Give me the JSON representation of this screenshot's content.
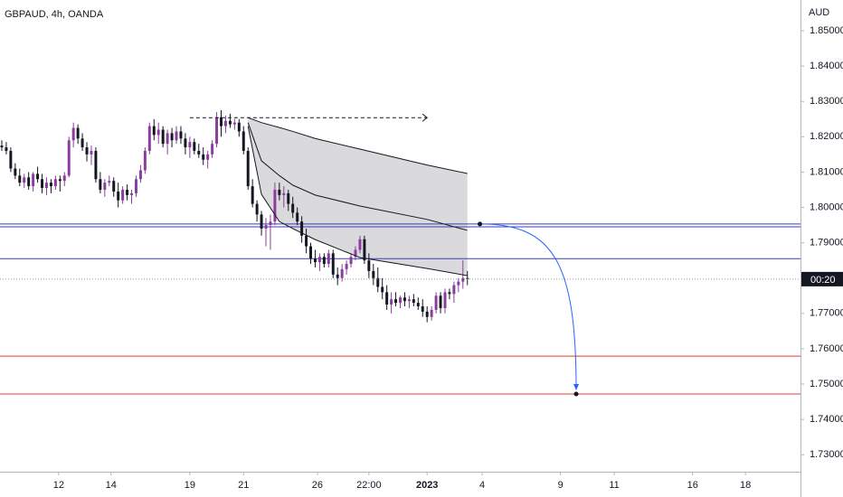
{
  "chart_data": {
    "type": "candlestick",
    "title": "GBPAUD, 4h, OANDA",
    "unit": "AUD",
    "bull_color": "#8a3d9e",
    "bear_color": "#131722",
    "xlim": [
      -0.4,
      178.4
    ],
    "xticks": [
      {
        "value": 12.7,
        "label": "12"
      },
      {
        "value": 24.4,
        "label": "14"
      },
      {
        "value": 42,
        "label": "19"
      },
      {
        "value": 54,
        "label": "21"
      },
      {
        "value": 70.5,
        "label": "26"
      },
      {
        "value": 82,
        "label": "22:00"
      },
      {
        "value": 95,
        "label": "2023",
        "bold": true
      },
      {
        "value": 107.3,
        "label": "4"
      },
      {
        "value": 124.8,
        "label": "9"
      },
      {
        "value": 136.8,
        "label": "11"
      },
      {
        "value": 154.3,
        "label": "16"
      },
      {
        "value": 166.1,
        "label": "18"
      }
    ],
    "ylim": [
      1.7252,
      1.8587
    ],
    "yticks": [
      {
        "value": 1.73,
        "label": "1.73000"
      },
      {
        "value": 1.74,
        "label": "1.74000"
      },
      {
        "value": 1.75,
        "label": "1.75000"
      },
      {
        "value": 1.76,
        "label": "1.76000"
      },
      {
        "value": 1.77,
        "label": "1.77000"
      },
      {
        "value": 1.78,
        "label": "1.78000"
      },
      {
        "value": 1.79,
        "label": "1.79000"
      },
      {
        "value": 1.8,
        "label": "1.80000"
      },
      {
        "value": 1.81,
        "label": "1.81000"
      },
      {
        "value": 1.82,
        "label": "1.82000"
      },
      {
        "value": 1.83,
        "label": "1.83000"
      },
      {
        "value": 1.84,
        "label": "1.84000"
      },
      {
        "value": 1.85,
        "label": "1.85000"
      }
    ],
    "candles": [
      [
        1.8175,
        1.819,
        1.816,
        1.817
      ],
      [
        1.817,
        1.8185,
        1.815,
        1.816
      ],
      [
        1.816,
        1.817,
        1.81,
        1.811
      ],
      [
        1.811,
        1.8125,
        1.808,
        1.809
      ],
      [
        1.809,
        1.811,
        1.806,
        1.807
      ],
      [
        1.807,
        1.8095,
        1.8055,
        1.8085
      ],
      [
        1.8085,
        1.81,
        1.805,
        1.806
      ],
      [
        1.806,
        1.81,
        1.8045,
        1.8095
      ],
      [
        1.8095,
        1.8115,
        1.807,
        1.808
      ],
      [
        1.808,
        1.8095,
        1.804,
        1.8055
      ],
      [
        1.8055,
        1.8085,
        1.8035,
        1.807
      ],
      [
        1.807,
        1.808,
        1.804,
        1.806
      ],
      [
        1.806,
        1.809,
        1.805,
        1.808
      ],
      [
        1.808,
        1.809,
        1.8045,
        1.8075
      ],
      [
        1.8075,
        1.81,
        1.806,
        1.809
      ],
      [
        1.809,
        1.82,
        1.8085,
        1.819
      ],
      [
        1.819,
        1.824,
        1.817,
        1.8225
      ],
      [
        1.8225,
        1.8235,
        1.818,
        1.8195
      ],
      [
        1.8195,
        1.821,
        1.816,
        1.817
      ],
      [
        1.817,
        1.8185,
        1.813,
        1.815
      ],
      [
        1.815,
        1.8175,
        1.812,
        1.816
      ],
      [
        1.816,
        1.817,
        1.807,
        1.808
      ],
      [
        1.808,
        1.81,
        1.804,
        1.805
      ],
      [
        1.805,
        1.808,
        1.803,
        1.807
      ],
      [
        1.807,
        1.809,
        1.806,
        1.8075
      ],
      [
        1.8075,
        1.8085,
        1.803,
        1.8045
      ],
      [
        1.8045,
        1.807,
        1.8,
        1.802
      ],
      [
        1.802,
        1.806,
        1.801,
        1.805
      ],
      [
        1.805,
        1.8065,
        1.802,
        1.8035
      ],
      [
        1.8035,
        1.805,
        1.801,
        1.804
      ],
      [
        1.804,
        1.809,
        1.803,
        1.808
      ],
      [
        1.808,
        1.812,
        1.807,
        1.8105
      ],
      [
        1.8105,
        1.817,
        1.8095,
        1.816
      ],
      [
        1.816,
        1.824,
        1.815,
        1.823
      ],
      [
        1.823,
        1.825,
        1.819,
        1.8205
      ],
      [
        1.8205,
        1.824,
        1.818,
        1.822
      ],
      [
        1.822,
        1.823,
        1.817,
        1.818
      ],
      [
        1.818,
        1.822,
        1.815,
        1.821
      ],
      [
        1.821,
        1.8225,
        1.817,
        1.819
      ],
      [
        1.819,
        1.823,
        1.818,
        1.8215
      ],
      [
        1.8215,
        1.823,
        1.818,
        1.8195
      ],
      [
        1.8195,
        1.821,
        1.815,
        1.817
      ],
      [
        1.817,
        1.82,
        1.814,
        1.8185
      ],
      [
        1.8185,
        1.8195,
        1.815,
        1.816
      ],
      [
        1.816,
        1.818,
        1.814,
        1.815
      ],
      [
        1.815,
        1.817,
        1.812,
        1.8135
      ],
      [
        1.8135,
        1.816,
        1.811,
        1.815
      ],
      [
        1.815,
        1.819,
        1.814,
        1.818
      ],
      [
        1.818,
        1.827,
        1.817,
        1.8255
      ],
      [
        1.8255,
        1.8275,
        1.82,
        1.823
      ],
      [
        1.823,
        1.826,
        1.821,
        1.8245
      ],
      [
        1.8245,
        1.8265,
        1.8225,
        1.8235
      ],
      [
        1.8235,
        1.825,
        1.822,
        1.824
      ],
      [
        1.824,
        1.825,
        1.82,
        1.8215
      ],
      [
        1.8215,
        1.823,
        1.815,
        1.816
      ],
      [
        1.816,
        1.817,
        1.805,
        1.806
      ],
      [
        1.806,
        1.808,
        1.8,
        1.801
      ],
      [
        1.801,
        1.802,
        1.796,
        1.798
      ],
      [
        1.798,
        1.799,
        1.792,
        1.794
      ],
      [
        1.794,
        1.797,
        1.789,
        1.795
      ],
      [
        1.795,
        1.798,
        1.788,
        1.796
      ],
      [
        1.796,
        1.807,
        1.795,
        1.805
      ],
      [
        1.805,
        1.807,
        1.802,
        1.8035
      ],
      [
        1.8035,
        1.806,
        1.8,
        1.804
      ],
      [
        1.804,
        1.805,
        1.799,
        1.801
      ],
      [
        1.801,
        1.803,
        1.797,
        1.7985
      ],
      [
        1.7985,
        1.8,
        1.795,
        1.796
      ],
      [
        1.796,
        1.7975,
        1.79,
        1.792
      ],
      [
        1.792,
        1.794,
        1.787,
        1.789
      ],
      [
        1.789,
        1.79,
        1.784,
        1.7855
      ],
      [
        1.7855,
        1.788,
        1.783,
        1.7845
      ],
      [
        1.7845,
        1.787,
        1.782,
        1.786
      ],
      [
        1.786,
        1.787,
        1.783,
        1.784
      ],
      [
        1.784,
        1.788,
        1.783,
        1.787
      ],
      [
        1.787,
        1.788,
        1.78,
        1.781
      ],
      [
        1.781,
        1.783,
        1.778,
        1.78
      ],
      [
        1.78,
        1.784,
        1.779,
        1.7825
      ],
      [
        1.7825,
        1.785,
        1.781,
        1.784
      ],
      [
        1.784,
        1.787,
        1.783,
        1.786
      ],
      [
        1.786,
        1.789,
        1.785,
        1.788
      ],
      [
        1.788,
        1.792,
        1.787,
        1.791
      ],
      [
        1.791,
        1.792,
        1.784,
        1.785
      ],
      [
        1.785,
        1.787,
        1.78,
        1.782
      ],
      [
        1.782,
        1.784,
        1.778,
        1.78
      ],
      [
        1.78,
        1.783,
        1.776,
        1.7775
      ],
      [
        1.7775,
        1.78,
        1.774,
        1.776
      ],
      [
        1.776,
        1.778,
        1.771,
        1.7725
      ],
      [
        1.7725,
        1.776,
        1.77,
        1.774
      ],
      [
        1.774,
        1.776,
        1.772,
        1.773
      ],
      [
        1.773,
        1.775,
        1.7715,
        1.7745
      ],
      [
        1.7745,
        1.776,
        1.772,
        1.7735
      ],
      [
        1.7735,
        1.775,
        1.7715,
        1.774
      ],
      [
        1.774,
        1.7755,
        1.772,
        1.773
      ],
      [
        1.773,
        1.7745,
        1.771,
        1.772
      ],
      [
        1.772,
        1.774,
        1.769,
        1.7705
      ],
      [
        1.7705,
        1.772,
        1.7675,
        1.769
      ],
      [
        1.769,
        1.772,
        1.768,
        1.771
      ],
      [
        1.771,
        1.776,
        1.77,
        1.775
      ],
      [
        1.775,
        1.776,
        1.77,
        1.7715
      ],
      [
        1.7715,
        1.777,
        1.77,
        1.776
      ],
      [
        1.776,
        1.777,
        1.774,
        1.7755
      ],
      [
        1.7755,
        1.779,
        1.773,
        1.778
      ],
      [
        1.778,
        1.78,
        1.776,
        1.779
      ],
      [
        1.779,
        1.785,
        1.777,
        1.78
      ],
      [
        1.78,
        1.782,
        1.778,
        1.7797
      ]
    ],
    "indicator": {
      "x": [
        55,
        58,
        62,
        65,
        70,
        80,
        95,
        104
      ],
      "upper": [
        1.8254,
        1.824,
        1.8226,
        1.8215,
        1.8195,
        1.8165,
        1.812,
        1.8096
      ],
      "middle": [
        1.824,
        1.8132,
        1.809,
        1.8063,
        1.8035,
        1.8004,
        1.7966,
        1.7935
      ],
      "lower": [
        1.823,
        1.8037,
        1.796,
        1.794,
        1.7909,
        1.7858,
        1.7827,
        1.7807
      ],
      "line_color": "#131722",
      "fill": "#d6d6d8"
    },
    "levels": [
      {
        "value": 1.7953,
        "color": "#3a3ab8"
      },
      {
        "value": 1.7945,
        "color": "#3a3ab8"
      },
      {
        "value": 1.7855,
        "color": "#3a3ab8"
      },
      {
        "value": 1.7579,
        "color": "#e53935"
      },
      {
        "value": 1.7472,
        "color": "#e53935"
      }
    ],
    "price_label": "00:20",
    "dashed_arrow": {
      "x": [
        42,
        95
      ],
      "y": [
        1.8254,
        1.8254
      ]
    },
    "projection": {
      "x": [
        106.8,
        128.3
      ],
      "y": [
        1.7953,
        1.7472
      ],
      "color": "#2962ff"
    }
  }
}
